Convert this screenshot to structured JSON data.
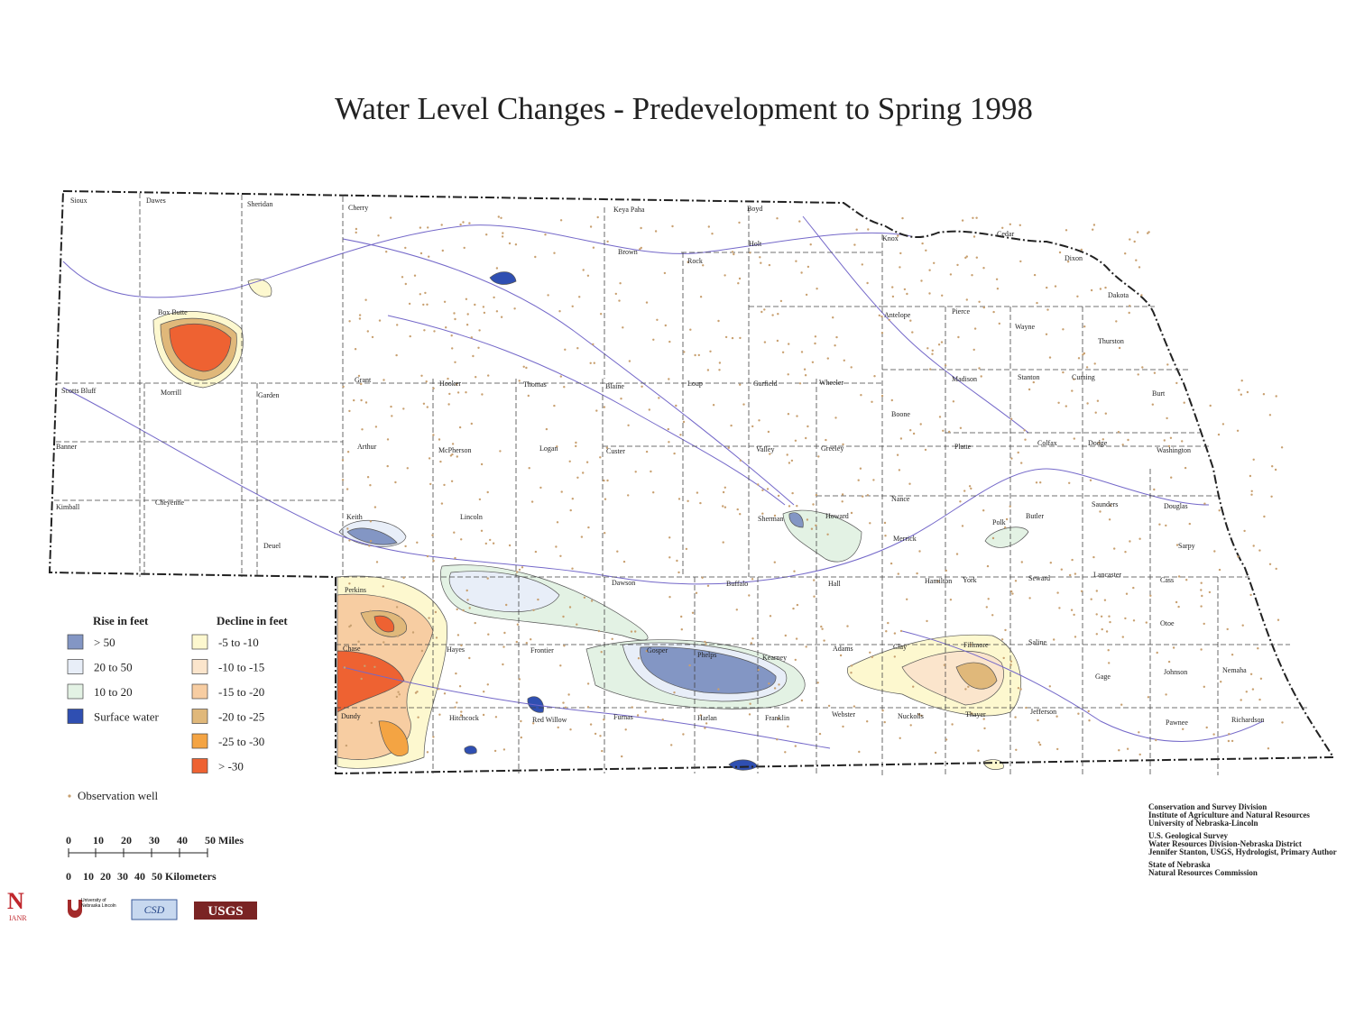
{
  "title": "Water Level Changes - Predevelopment to Spring 1998",
  "counties": [
    "Sioux",
    "Dawes",
    "Sheridan",
    "Cherry",
    "Keya Paha",
    "Boyd",
    "Knox",
    "Cedar",
    "Dixon",
    "Brown",
    "Rock",
    "Holt",
    "Dakota",
    "Box Butte",
    "Antelope",
    "Pierce",
    "Wayne",
    "Thurston",
    "Scotts Bluff",
    "Morrill",
    "Garden",
    "Grant",
    "Hooker",
    "Thomas",
    "Blaine",
    "Loup",
    "Garfield",
    "Wheeler",
    "Madison",
    "Stanton",
    "Cuming",
    "Burt",
    "Boone",
    "Banner",
    "Arthur",
    "McPherson",
    "Logan",
    "Custer",
    "Valley",
    "Greeley",
    "Platte",
    "Colfax",
    "Dodge",
    "Washington",
    "Kimball",
    "Cheyenne",
    "Keith",
    "Lincoln",
    "Sherman",
    "Howard",
    "Nance",
    "Merrick",
    "Polk",
    "Butler",
    "Saunders",
    "Douglas",
    "Sarpy",
    "Deuel",
    "Perkins",
    "Dawson",
    "Buffalo",
    "Hall",
    "Hamilton",
    "York",
    "Seward",
    "Lancaster",
    "Cass",
    "Otoe",
    "Chase",
    "Hayes",
    "Frontier",
    "Gosper",
    "Phelps",
    "Kearney",
    "Adams",
    "Clay",
    "Fillmore",
    "Saline",
    "Gage",
    "Johnson",
    "Nemaha",
    "Dundy",
    "Hitchcock",
    "Red Willow",
    "Furnas",
    "Harlan",
    "Franklin",
    "Webster",
    "Nuckolls",
    "Thayer",
    "Jefferson",
    "Pawnee",
    "Richardson"
  ],
  "legend": {
    "rise_title": "Rise in feet",
    "rise": [
      {
        "label": "> 50",
        "color": "#8396c4"
      },
      {
        "label": "20 to 50",
        "color": "#e8eef8"
      },
      {
        "label": "10 to 20",
        "color": "#e3f2e4"
      },
      {
        "label": "Surface water",
        "color": "#2f4fb2"
      }
    ],
    "decline_title": "Decline in feet",
    "decline": [
      {
        "label": "-5 to -10",
        "color": "#fdf8cf"
      },
      {
        "label": "-10 to -15",
        "color": "#fbe5cc"
      },
      {
        "label": "-15 to -20",
        "color": "#f7cda2"
      },
      {
        "label": "-20 to -25",
        "color": "#e0b87a"
      },
      {
        "label": "-25 to -30",
        "color": "#f4a443"
      },
      {
        "label": "> -30",
        "color": "#ee6232"
      }
    ],
    "well": "Observation well"
  },
  "scale": {
    "miles": [
      "0",
      "10",
      "20",
      "30",
      "40",
      "50 Miles"
    ],
    "km": [
      "0",
      "10",
      "20",
      "30",
      "40",
      "50 Kilometers"
    ]
  },
  "credits": [
    "Conservation and Survey Division",
    "Institute of Agriculture and Natural Resources",
    "University of Nebraska-Lincoln",
    "U.S. Geological Survey",
    "Water Resources Division-Nebraska District",
    "Jennifer Stanton, USGS, Hydrologist, Primary Author",
    "State of Nebraska",
    "Natural Resources Commission"
  ],
  "logos": {
    "ianr_n": "N",
    "ianr": "IANR",
    "unl": "University of Nebraska Lincoln",
    "csd": "CSD",
    "usgs": "USGS"
  }
}
